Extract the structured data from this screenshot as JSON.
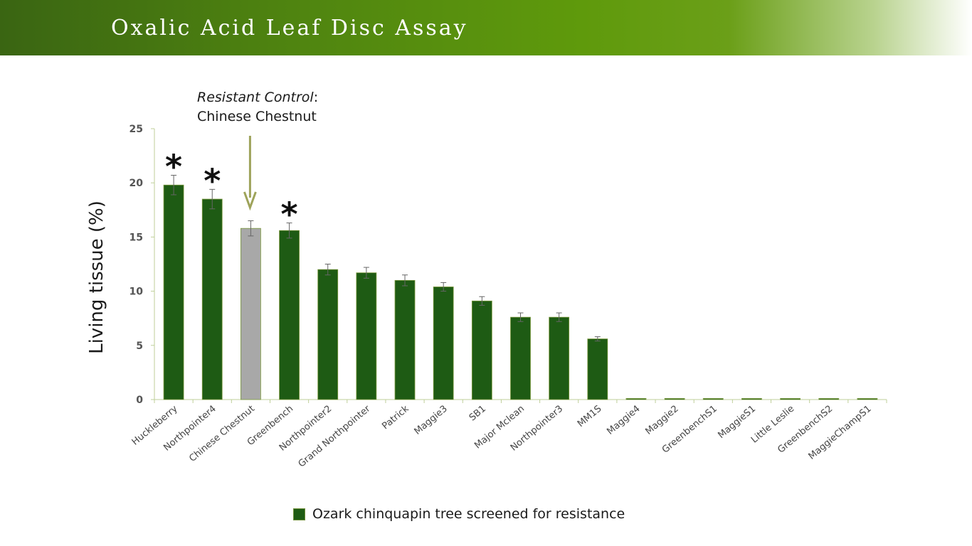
{
  "title": "Oxalic Acid Leaf Disc Assay",
  "annotation": {
    "italic_text": "Resistant Control",
    "colon": ":",
    "line2": "Chinese Chestnut"
  },
  "colors": {
    "bar": "#1e5b14",
    "control_bar": "#a8a8a8",
    "arrow": "#9ea35a",
    "axis": "#bfcf9a"
  },
  "chart_data": {
    "type": "bar",
    "ylabel": "Living tissue (%)",
    "ylim": [
      0,
      25
    ],
    "yticks": [
      0,
      5,
      10,
      15,
      20,
      25
    ],
    "categories": [
      "Huckleberry",
      "Northpointer4",
      "Chinese Chestnut",
      "Greenbench",
      "Northpointer2",
      "Grand Northpointer",
      "Patrick",
      "Maggie3",
      "SB1",
      "Major Mclean",
      "Northpointer3",
      "MM1S",
      "Maggie4",
      "Maggie2",
      "GreenbenchS1",
      "MaggieS1",
      "Little Leslie",
      "GreenbenchS2",
      "MaggieChampS1"
    ],
    "values": [
      19.8,
      18.5,
      15.8,
      15.6,
      12.0,
      11.7,
      11.0,
      10.4,
      9.1,
      7.6,
      7.6,
      5.6,
      0.1,
      0.1,
      0.1,
      0.1,
      0.1,
      0.1,
      0.1
    ],
    "errors": [
      0.9,
      0.9,
      0.7,
      0.7,
      0.5,
      0.5,
      0.5,
      0.4,
      0.4,
      0.4,
      0.4,
      0.2,
      0,
      0,
      0,
      0,
      0,
      0,
      0
    ],
    "control_category": "Chinese Chestnut",
    "significance": [
      {
        "category": "Huckleberry",
        "label": "*"
      },
      {
        "category": "Northpointer4",
        "label": "*"
      },
      {
        "category": "Greenbench",
        "label": "*"
      }
    ],
    "legend": [
      {
        "name": "Ozark chinquapin tree screened for resistance",
        "color": "#1e5b14"
      }
    ],
    "legend_position": "bottom",
    "grid": false
  }
}
